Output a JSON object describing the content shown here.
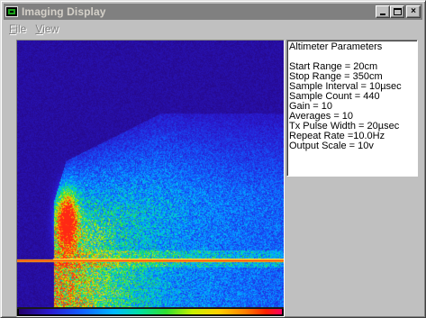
{
  "window": {
    "title": "Imaging Display",
    "caption_buttons": {
      "minimize": "minimize",
      "maximize": "maximize",
      "close": "×"
    }
  },
  "menu": [
    {
      "label_rest": "ile",
      "mnemonic": "F"
    },
    {
      "label_rest": "iew",
      "mnemonic": "V"
    }
  ],
  "params": {
    "heading": "Altimeter Parameters",
    "lines": [
      "Start Range = 20cm",
      "Stop Range = 350cm",
      "Sample Interval = 10µsec",
      "Sample Count = 440",
      "Gain = 10",
      "Averages = 10",
      "Tx Pulse Width = 20µsec",
      "Repeat Rate =10.0Hz",
      "Output Scale = 10v"
    ]
  },
  "icons": {
    "app": "imaging-display-app-icon",
    "minimize": "minimize-icon",
    "maximize": "maximize-icon",
    "close": "close-icon"
  },
  "colors": {
    "title_bar": "#808080",
    "title_text": "#d4d0c8",
    "background": "#24006a",
    "bottom_line": "#ffb000"
  }
}
